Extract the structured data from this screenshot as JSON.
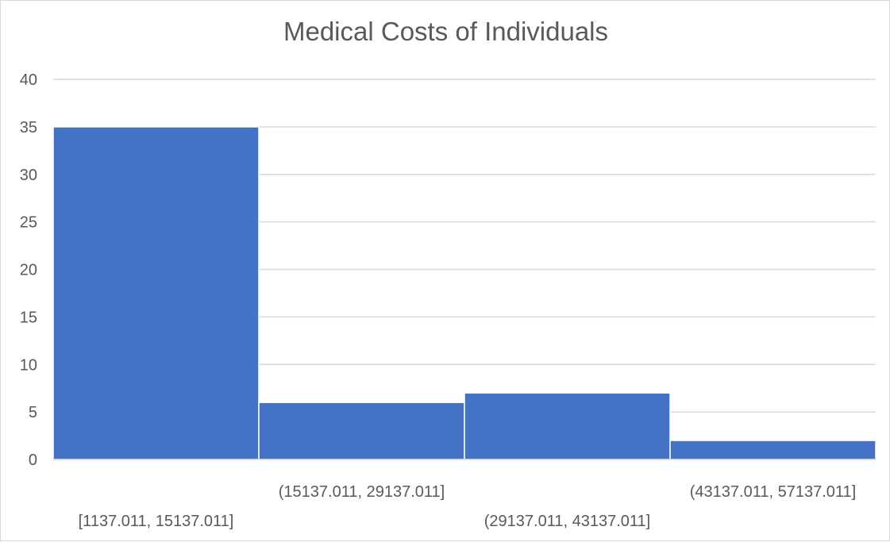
{
  "chart_data": {
    "type": "bar",
    "title": "Medical Costs of Individuals",
    "categories": [
      "[1137.011, 15137.011]",
      "(15137.011, 29137.011]",
      "(29137.011, 43137.011]",
      "(43137.011, 57137.011]"
    ],
    "values": [
      35,
      6,
      7,
      2
    ],
    "ylim": [
      0,
      40
    ],
    "yticks": [
      "0",
      "5",
      "10",
      "15",
      "20",
      "25",
      "30",
      "35",
      "40"
    ],
    "xlabel": "",
    "ylabel": "",
    "grid": true,
    "legend": "none",
    "bar_color": "#4472C4",
    "grid_color": "#d9d9d9",
    "text_color": "#595959"
  }
}
